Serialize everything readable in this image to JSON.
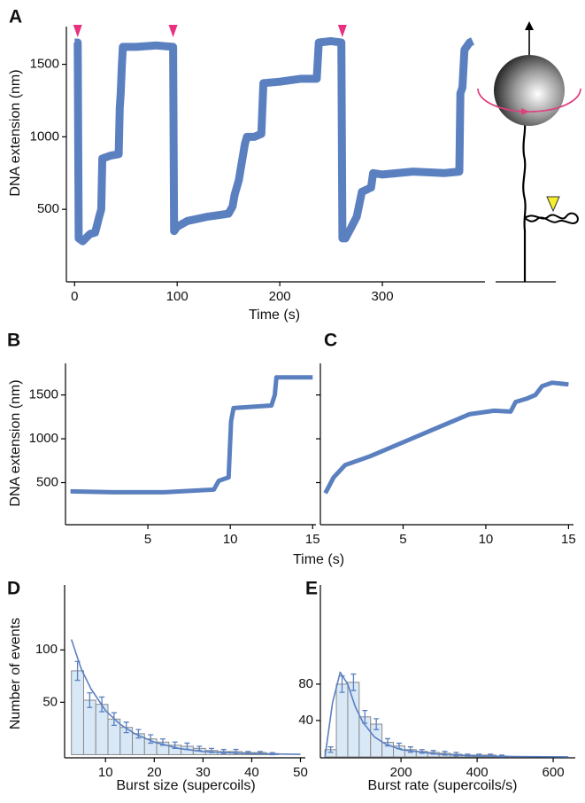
{
  "chart_data": [
    {
      "type": "line",
      "label": "A",
      "xlabel": "Time (s)",
      "ylabel": "DNA extension (nm)",
      "xlim": [
        -8,
        400
      ],
      "ylim": [
        0,
        1760
      ],
      "xticks": [
        0,
        100,
        200,
        300
      ],
      "yticks": [
        500,
        1000,
        1500
      ],
      "markers": [
        3,
        96,
        261
      ],
      "marker_color": "#e8307f",
      "series": [
        {
          "color": "#5b80c0",
          "x": [
            0,
            3,
            4,
            8,
            15,
            20,
            24,
            26,
            27,
            35,
            43,
            44,
            45,
            46,
            47,
            60,
            80,
            96,
            97,
            100,
            110,
            130,
            150,
            154,
            156,
            160,
            166,
            168,
            175,
            182,
            184,
            200,
            220,
            236,
            238,
            250,
            260,
            261,
            264,
            270,
            275,
            280,
            289,
            291,
            300,
            330,
            360,
            375,
            376,
            378,
            380,
            382,
            385,
            388
          ],
          "values": [
            1650,
            1650,
            300,
            280,
            330,
            340,
            450,
            500,
            850,
            870,
            880,
            1200,
            1300,
            1480,
            1620,
            1620,
            1630,
            1620,
            350,
            380,
            420,
            450,
            470,
            520,
            600,
            700,
            950,
            1000,
            1000,
            1020,
            1370,
            1380,
            1400,
            1400,
            1650,
            1660,
            1650,
            300,
            300,
            380,
            450,
            620,
            650,
            750,
            740,
            760,
            750,
            760,
            1300,
            1340,
            1600,
            1620,
            1650,
            1660
          ]
        }
      ]
    },
    {
      "type": "line",
      "label": "B",
      "xlabel": "Time (s)",
      "ylabel": "DNA extension (nm)",
      "xlim": [
        0,
        15.2
      ],
      "ylim": [
        20,
        1860
      ],
      "xticks": [
        5,
        10,
        15
      ],
      "yticks": [
        500,
        1000,
        1500
      ],
      "series": [
        {
          "color": "#5b80c0",
          "x": [
            0.3,
            3,
            6,
            9,
            9.3,
            9.9,
            10.05,
            10.2,
            12.5,
            12.7,
            12.8,
            15
          ],
          "values": [
            400,
            390,
            390,
            420,
            520,
            560,
            1200,
            1350,
            1380,
            1500,
            1700,
            1700
          ]
        }
      ]
    },
    {
      "type": "line",
      "label": "C",
      "xlim": [
        0,
        15.3
      ],
      "ylim": [
        20,
        1860
      ],
      "xticks": [
        5,
        10,
        15
      ],
      "yticks": [
        500,
        1000,
        1500
      ],
      "series": [
        {
          "color": "#5b80c0",
          "x": [
            0.3,
            0.8,
            1.5,
            3,
            5,
            7,
            9,
            10.5,
            11.5,
            11.8,
            12.5,
            13,
            13.4,
            14,
            15
          ],
          "values": [
            380,
            560,
            700,
            800,
            960,
            1120,
            1280,
            1320,
            1310,
            1420,
            1460,
            1500,
            1600,
            1640,
            1620
          ]
        }
      ]
    },
    {
      "type": "histogram",
      "label": "D",
      "xlabel": "Burst size (supercoils)",
      "ylabel": "Number of events",
      "xlim": [
        1.6,
        51
      ],
      "ylim": [
        -3,
        162
      ],
      "xticks": [
        10,
        20,
        30,
        40,
        50
      ],
      "yticks": [
        50,
        100
      ],
      "color": "#d8e8f7",
      "edge_color": "#8a8a8a",
      "error_color": "#5b80c0",
      "bins": [
        3,
        5.5,
        8,
        10.5,
        13,
        15.5,
        18,
        20.5,
        23,
        25.5,
        28,
        30.5,
        33,
        35.5,
        38,
        40.5,
        43,
        45.5
      ],
      "values": [
        80,
        52,
        48,
        34,
        26,
        20,
        15,
        12,
        9,
        8,
        6,
        4,
        3,
        3,
        2,
        2,
        1
      ],
      "errors": [
        9,
        7,
        7,
        6,
        5,
        4,
        4,
        3,
        3,
        3,
        2,
        2,
        2,
        2,
        1,
        1,
        1
      ],
      "fit": {
        "color": "#5b80c0",
        "x": [
          3,
          5,
          7,
          10,
          13,
          16,
          20,
          25,
          30,
          40,
          50
        ],
        "values": [
          110,
          82,
          63,
          42,
          29,
          20,
          12,
          6,
          3,
          1,
          0.3
        ]
      }
    },
    {
      "type": "histogram",
      "label": "E",
      "xlabel": "Burst rate (supercoils/s)",
      "xlim": [
        -12,
        658
      ],
      "ylim": [
        -1,
        189
      ],
      "xticks": [
        200,
        400,
        600
      ],
      "yticks": [
        40,
        80
      ],
      "color": "#d8e8f7",
      "edge_color": "#8a8a8a",
      "error_color": "#5b80c0",
      "bins": [
        0,
        30,
        60,
        90,
        120,
        150,
        180,
        210,
        240,
        270,
        300,
        330,
        360,
        390,
        420,
        450,
        480
      ],
      "values": [
        8,
        80,
        82,
        44,
        36,
        16,
        12,
        8,
        6,
        5,
        4,
        3,
        2,
        2,
        2,
        1
      ],
      "errors": [
        3,
        9,
        9,
        7,
        6,
        4,
        3,
        3,
        2,
        2,
        2,
        2,
        1,
        1,
        1,
        1
      ],
      "fit": {
        "color": "#5b80c0",
        "x": [
          0,
          20,
          40,
          60,
          80,
          100,
          130,
          160,
          200,
          300,
          400,
          500,
          640
        ],
        "values": [
          0,
          60,
          93,
          80,
          55,
          38,
          22,
          14,
          8,
          3,
          1,
          0.4,
          0.1
        ]
      }
    }
  ]
}
